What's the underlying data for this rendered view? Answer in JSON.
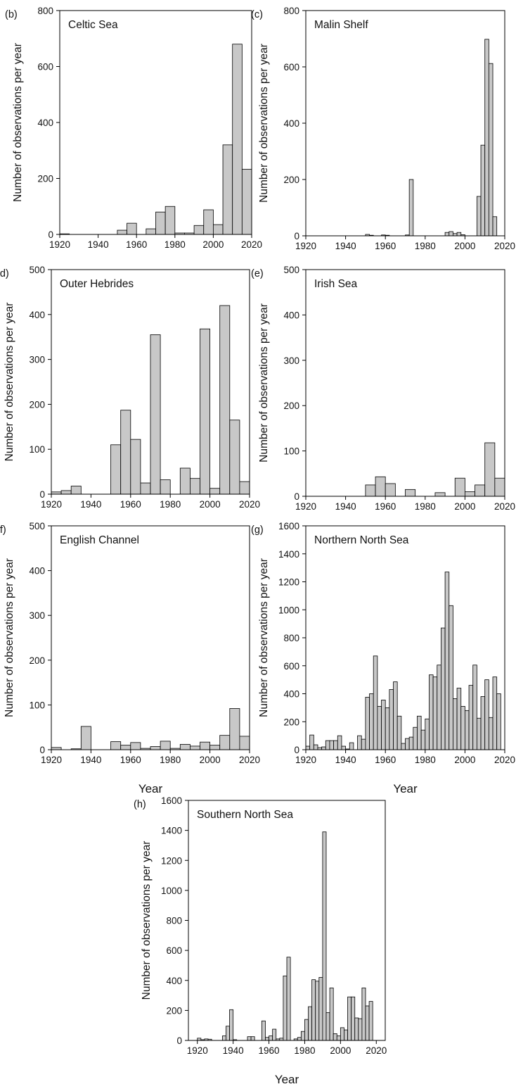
{
  "figure": {
    "x_axis_label": "Year",
    "y_axis_label": "Number of observations per year",
    "bar_color": "#c8c8c8",
    "bar_stroke": "#000000"
  },
  "chart_data": [
    {
      "panel": "(b)",
      "type": "bar",
      "title": "Celtic Sea",
      "xlabel": "",
      "ylabel": "Number of observations per year",
      "xlim": [
        1920,
        2020
      ],
      "ylim": [
        0,
        800
      ],
      "xticks": [
        1920,
        1940,
        1960,
        1980,
        2000,
        2020
      ],
      "yticks": [
        0,
        200,
        400,
        600,
        800
      ],
      "bin_width": 5,
      "x": [
        1920,
        1925,
        1930,
        1935,
        1940,
        1945,
        1950,
        1955,
        1960,
        1965,
        1970,
        1975,
        1980,
        1985,
        1990,
        1995,
        2000,
        2005,
        2010,
        2015
      ],
      "values": [
        2,
        0,
        0,
        0,
        0,
        0,
        15,
        40,
        0,
        20,
        80,
        100,
        5,
        5,
        32,
        88,
        35,
        320,
        680,
        233
      ]
    },
    {
      "panel": "(c)",
      "type": "bar",
      "title": "Malin Shelf",
      "xlabel": "",
      "ylabel": "Number of observations per year",
      "xlim": [
        1920,
        2020
      ],
      "ylim": [
        0,
        800
      ],
      "xticks": [
        1920,
        1940,
        1960,
        1980,
        2000,
        2020
      ],
      "yticks": [
        0,
        200,
        400,
        600,
        800
      ],
      "bin_width": 2,
      "x": [
        1950,
        1952,
        1958,
        1960,
        1970,
        1972,
        1990,
        1992,
        1994,
        1996,
        1998,
        2006,
        2008,
        2010,
        2012,
        2014
      ],
      "values": [
        5,
        2,
        3,
        2,
        3,
        200,
        12,
        15,
        8,
        12,
        4,
        140,
        322,
        698,
        612,
        68
      ]
    },
    {
      "panel": "(d)",
      "type": "bar",
      "title": "Outer Hebrides",
      "xlabel": "",
      "ylabel": "Number of observations per year",
      "xlim": [
        1920,
        2020
      ],
      "ylim": [
        0,
        500
      ],
      "xticks": [
        1920,
        1940,
        1960,
        1980,
        2000,
        2020
      ],
      "yticks": [
        0,
        100,
        200,
        300,
        400,
        500
      ],
      "bin_width": 5,
      "x": [
        1920,
        1925,
        1930,
        1935,
        1940,
        1945,
        1950,
        1955,
        1960,
        1965,
        1970,
        1975,
        1980,
        1985,
        1990,
        1995,
        2000,
        2005,
        2010,
        2015
      ],
      "values": [
        5,
        8,
        18,
        0,
        0,
        0,
        110,
        187,
        122,
        25,
        355,
        32,
        0,
        58,
        35,
        368,
        13,
        420,
        165,
        28
      ]
    },
    {
      "panel": "(e)",
      "type": "bar",
      "title": "Irish Sea",
      "xlabel": "",
      "ylabel": "Number of observations per year",
      "xlim": [
        1920,
        2020
      ],
      "ylim": [
        0,
        500
      ],
      "xticks": [
        1920,
        1940,
        1960,
        1980,
        2000,
        2020
      ],
      "yticks": [
        0,
        100,
        200,
        300,
        400,
        500
      ],
      "bin_width": 5,
      "x": [
        1920,
        1925,
        1930,
        1935,
        1940,
        1945,
        1950,
        1955,
        1960,
        1965,
        1970,
        1975,
        1980,
        1985,
        1990,
        1995,
        2000,
        2005,
        2010,
        2015
      ],
      "values": [
        0,
        0,
        0,
        0,
        0,
        0,
        25,
        43,
        28,
        0,
        15,
        0,
        0,
        8,
        0,
        40,
        10,
        25,
        118,
        40
      ]
    },
    {
      "panel": "(f)",
      "type": "bar",
      "title": "English Channel",
      "xlabel": "Year",
      "ylabel": "Number of observations per year",
      "xlim": [
        1920,
        2020
      ],
      "ylim": [
        0,
        500
      ],
      "xticks": [
        1920,
        1940,
        1960,
        1980,
        2000,
        2020
      ],
      "yticks": [
        0,
        100,
        200,
        300,
        400,
        500
      ],
      "bin_width": 5,
      "x": [
        1920,
        1925,
        1930,
        1935,
        1940,
        1945,
        1950,
        1955,
        1960,
        1965,
        1970,
        1975,
        1980,
        1985,
        1990,
        1995,
        2000,
        2005,
        2010,
        2015
      ],
      "values": [
        5,
        0,
        2,
        52,
        0,
        0,
        18,
        10,
        16,
        3,
        7,
        19,
        3,
        12,
        8,
        17,
        10,
        32,
        92,
        30
      ]
    },
    {
      "panel": "(g)",
      "type": "bar",
      "title": "Northern North Sea",
      "xlabel": "Year",
      "ylabel": "Number of observations per year",
      "xlim": [
        1920,
        2020
      ],
      "ylim": [
        0,
        1600
      ],
      "xticks": [
        1920,
        1940,
        1960,
        1980,
        2000,
        2020
      ],
      "yticks": [
        0,
        200,
        400,
        600,
        800,
        1000,
        1200,
        1400,
        1600
      ],
      "bin_width": 2,
      "x": [
        1920,
        1922,
        1924,
        1926,
        1928,
        1930,
        1932,
        1934,
        1936,
        1938,
        1940,
        1942,
        1944,
        1946,
        1948,
        1950,
        1952,
        1954,
        1956,
        1958,
        1960,
        1962,
        1964,
        1966,
        1968,
        1970,
        1972,
        1974,
        1976,
        1978,
        1980,
        1982,
        1984,
        1986,
        1988,
        1990,
        1992,
        1994,
        1996,
        1998,
        2000,
        2002,
        2004,
        2006,
        2008,
        2010,
        2012,
        2014,
        2016
      ],
      "values": [
        25,
        105,
        35,
        15,
        20,
        65,
        65,
        65,
        100,
        25,
        5,
        50,
        0,
        100,
        75,
        375,
        400,
        670,
        310,
        355,
        300,
        430,
        485,
        240,
        45,
        80,
        90,
        160,
        240,
        140,
        220,
        535,
        520,
        605,
        870,
        1270,
        1030,
        365,
        440,
        310,
        280,
        460,
        605,
        225,
        380,
        500,
        230,
        520,
        400
      ]
    },
    {
      "panel": "(h)",
      "type": "bar",
      "title": "Southern North Sea",
      "xlabel": "Year",
      "ylabel": "Number of observations per year",
      "xlim": [
        1915,
        2025
      ],
      "ylim": [
        0,
        1600
      ],
      "xticks": [
        1920,
        1940,
        1960,
        1980,
        2000,
        2020
      ],
      "yticks": [
        0,
        200,
        400,
        600,
        800,
        1000,
        1200,
        1400,
        1600
      ],
      "bin_width": 2,
      "x": [
        1920,
        1922,
        1924,
        1926,
        1928,
        1930,
        1932,
        1934,
        1936,
        1938,
        1940,
        1942,
        1944,
        1946,
        1948,
        1950,
        1952,
        1954,
        1956,
        1958,
        1960,
        1962,
        1964,
        1966,
        1968,
        1970,
        1972,
        1974,
        1976,
        1978,
        1980,
        1982,
        1984,
        1986,
        1988,
        1990,
        1992,
        1994,
        1996,
        1998,
        2000,
        2002,
        2004,
        2006,
        2008,
        2010,
        2012,
        2014,
        2016
      ],
      "values": [
        15,
        5,
        10,
        8,
        0,
        0,
        0,
        30,
        95,
        205,
        5,
        0,
        0,
        0,
        25,
        25,
        0,
        0,
        130,
        20,
        30,
        75,
        10,
        15,
        430,
        555,
        0,
        10,
        20,
        60,
        140,
        225,
        405,
        395,
        420,
        1390,
        185,
        350,
        45,
        30,
        85,
        70,
        290,
        290,
        150,
        145,
        350,
        230,
        260
      ]
    }
  ]
}
